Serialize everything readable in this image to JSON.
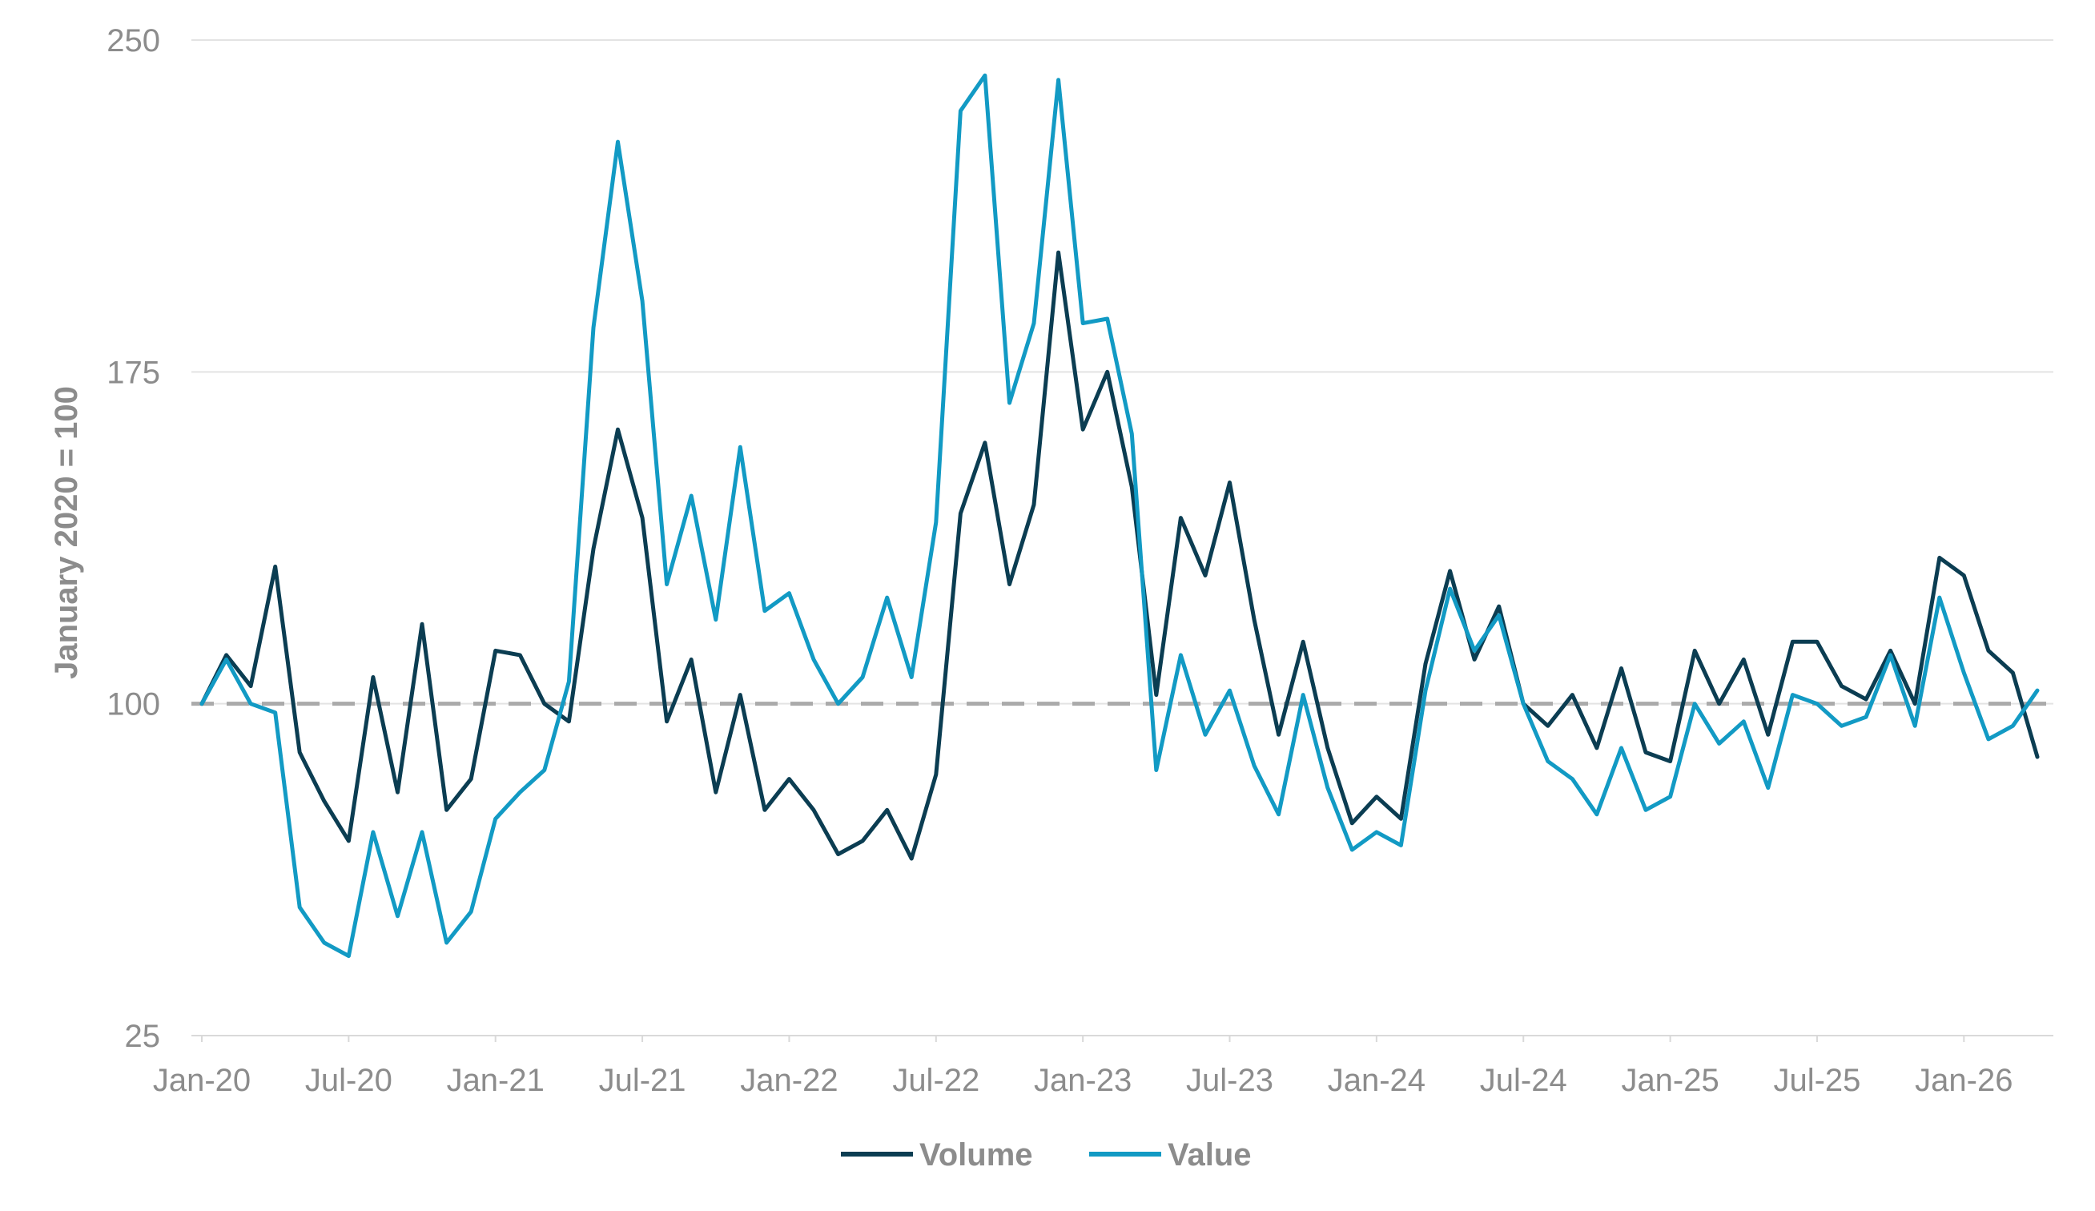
{
  "chart_data": {
    "type": "line",
    "ylabel": "January 2020 = 100",
    "xlabel": "",
    "ylim": [
      25,
      250
    ],
    "yticks": [
      25,
      100,
      175,
      250
    ],
    "x_tick_labels": [
      "Jan-20",
      "Jul-20",
      "Jan-21",
      "Jul-21",
      "Jan-22",
      "Jul-22",
      "Jan-23",
      "Jul-23",
      "Jan-24",
      "Jul-24",
      "Jan-25",
      "Jul-25",
      "Jan-26"
    ],
    "x_start": "Jan-20",
    "x_end": "Jun-26",
    "reference_line": {
      "value": 100,
      "style": "dashed",
      "color": "#aaaaaa"
    },
    "grid": {
      "horizontal": true,
      "vertical": false
    },
    "legend": {
      "position": "bottom-center"
    },
    "series": [
      {
        "name": "Volume",
        "color": "#0b3d52",
        "values": [
          100,
          111,
          104,
          131,
          89,
          78,
          69,
          106,
          80,
          118,
          76,
          83,
          112,
          111,
          100,
          96,
          135,
          162,
          142,
          96,
          110,
          80,
          102,
          76,
          83,
          76,
          66,
          69,
          76,
          65,
          84,
          143,
          159,
          127,
          145,
          202,
          162,
          175,
          149,
          102,
          142,
          129,
          150,
          119,
          93,
          114,
          90,
          73,
          79,
          74,
          109,
          130,
          110,
          122,
          100,
          95,
          102,
          90,
          108,
          89,
          87,
          112,
          100,
          110,
          93,
          114,
          114,
          104,
          101,
          112,
          100,
          133,
          129,
          112,
          107,
          88
        ]
      },
      {
        "name": "Value",
        "color": "#129ac4",
        "values": [
          100,
          110,
          100,
          98,
          54,
          46,
          43,
          71,
          52,
          71,
          46,
          53,
          74,
          80,
          85,
          105,
          185,
          227,
          191,
          127,
          147,
          119,
          158,
          121,
          125,
          110,
          100,
          106,
          124,
          106,
          141,
          234,
          242,
          168,
          186,
          241,
          186,
          187,
          161,
          85,
          111,
          93,
          103,
          86,
          75,
          102,
          81,
          67,
          71,
          68,
          103,
          126,
          112,
          120,
          100,
          87,
          83,
          75,
          90,
          76,
          79,
          100,
          91,
          96,
          81,
          102,
          100,
          95,
          97,
          111,
          95,
          124,
          107,
          92,
          95,
          103
        ]
      }
    ]
  }
}
